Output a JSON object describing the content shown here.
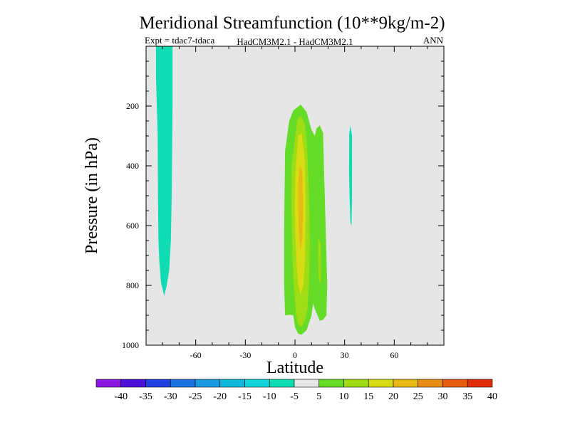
{
  "chart_data": {
    "type": "contour",
    "title": "Meridional Streamfunction (10**9kg/m-2)",
    "subtitle_left": "Expt = tdac7-tdaca",
    "subtitle_center": "HadCM3M2.1 - HadCM3M2.1",
    "subtitle_right": "ANN",
    "xlabel": "Latitude",
    "ylabel": "Pressure (in hPa)",
    "xlim": [
      -90,
      90
    ],
    "ylim": [
      1000,
      0
    ],
    "x_ticks": [
      -60,
      -30,
      0,
      30,
      60
    ],
    "y_ticks": [
      200,
      400,
      600,
      800,
      1000
    ],
    "background_color": "#e6e6e6",
    "colorbar": {
      "labels": [
        "-40",
        "-35",
        "-30",
        "-25",
        "-20",
        "-15",
        "-10",
        "-5",
        "5",
        "10",
        "15",
        "20",
        "25",
        "30",
        "35",
        "40"
      ],
      "colors": [
        "#8a18e0",
        "#4a10d8",
        "#2040e0",
        "#1a70e0",
        "#1898e0",
        "#10b8dc",
        "#10d4d8",
        "#10dcb4",
        "#e6e6e6",
        "#64dc28",
        "#a0dc14",
        "#d8dc14",
        "#e8b814",
        "#e88c14",
        "#e85c10",
        "#e02c08"
      ]
    },
    "regions": [
      {
        "name": "teal-column-south",
        "level": "-10 to -5",
        "color": "#10dcb4",
        "outline": [
          [
            -84,
            0
          ],
          [
            -74,
            0
          ],
          [
            -74,
            200
          ],
          [
            -74.5,
            500
          ],
          [
            -75,
            650
          ],
          [
            -76,
            750
          ],
          [
            -77.5,
            800
          ],
          [
            -79,
            835
          ],
          [
            -81,
            790
          ],
          [
            -82,
            720
          ],
          [
            -82.5,
            650
          ],
          [
            -82.8,
            500
          ],
          [
            -83,
            300
          ],
          [
            -84,
            100
          ]
        ]
      },
      {
        "name": "green-band-equator",
        "level": "5 to 10",
        "color": "#64dc28",
        "outline": [
          [
            -3.5,
            250
          ],
          [
            -1,
            215
          ],
          [
            3.5,
            195
          ],
          [
            7,
            220
          ],
          [
            10,
            280
          ],
          [
            12,
            300
          ],
          [
            13,
            275
          ],
          [
            15,
            265
          ],
          [
            17,
            290
          ],
          [
            17.5,
            400
          ],
          [
            18.5,
            600
          ],
          [
            19.5,
            800
          ],
          [
            19,
            900
          ],
          [
            17,
            915
          ],
          [
            15,
            918
          ],
          [
            12,
            880
          ],
          [
            11,
            860
          ],
          [
            10,
            900
          ],
          [
            7,
            950
          ],
          [
            4,
            965
          ],
          [
            2,
            962
          ],
          [
            0,
            940
          ],
          [
            -1,
            900
          ],
          [
            -3,
            898
          ],
          [
            -6,
            900
          ],
          [
            -6.5,
            800
          ],
          [
            -6.5,
            600
          ],
          [
            -6,
            350
          ]
        ]
      },
      {
        "name": "yellow-green-core",
        "level": "10 to 15",
        "color": "#a0dc14",
        "outline": [
          [
            -0.5,
            330
          ],
          [
            1.5,
            245
          ],
          [
            3.5,
            232
          ],
          [
            6,
            260
          ],
          [
            7.5,
            350
          ],
          [
            8.5,
            500
          ],
          [
            9,
            650
          ],
          [
            8.5,
            800
          ],
          [
            7.5,
            880
          ],
          [
            6,
            920
          ],
          [
            4,
            938
          ],
          [
            2,
            932
          ],
          [
            0.5,
            890
          ],
          [
            0,
            850
          ],
          [
            -1,
            780
          ],
          [
            -1.8,
            650
          ],
          [
            -2.3,
            500
          ],
          [
            -2,
            400
          ]
        ]
      },
      {
        "name": "yellow-green-east-blob",
        "level": "10 to 15",
        "color": "#a0dc14",
        "outline": [
          [
            14,
            640
          ],
          [
            15.5,
            660
          ],
          [
            15.8,
            750
          ],
          [
            15.5,
            790
          ],
          [
            14.5,
            790
          ],
          [
            14,
            720
          ]
        ]
      },
      {
        "name": "yellow-core",
        "level": "15 to 20",
        "color": "#d8dc14",
        "outline": [
          [
            0.5,
            400
          ],
          [
            2,
            300
          ],
          [
            4,
            290
          ],
          [
            6,
            380
          ],
          [
            6.5,
            550
          ],
          [
            6,
            720
          ],
          [
            5,
            800
          ],
          [
            3.5,
            830
          ],
          [
            2,
            800
          ],
          [
            1,
            720
          ],
          [
            0,
            600
          ],
          [
            0,
            500
          ]
        ]
      },
      {
        "name": "orange-core",
        "level": "20 to 25",
        "color": "#e8b814",
        "outline": [
          [
            2,
            450
          ],
          [
            3,
            400
          ],
          [
            4.5,
            420
          ],
          [
            4.8,
            550
          ],
          [
            4.5,
            640
          ],
          [
            3.5,
            680
          ],
          [
            2.5,
            640
          ],
          [
            2,
            550
          ]
        ]
      },
      {
        "name": "teal-sliver-30N",
        "level": "-10 to -5",
        "color": "#10dcb4",
        "outline": [
          [
            32.8,
            290
          ],
          [
            33.5,
            265
          ],
          [
            34.5,
            300
          ],
          [
            34.5,
            500
          ],
          [
            34.2,
            600
          ],
          [
            33.5,
            590
          ],
          [
            33,
            500
          ],
          [
            32.7,
            420
          ]
        ]
      }
    ]
  }
}
